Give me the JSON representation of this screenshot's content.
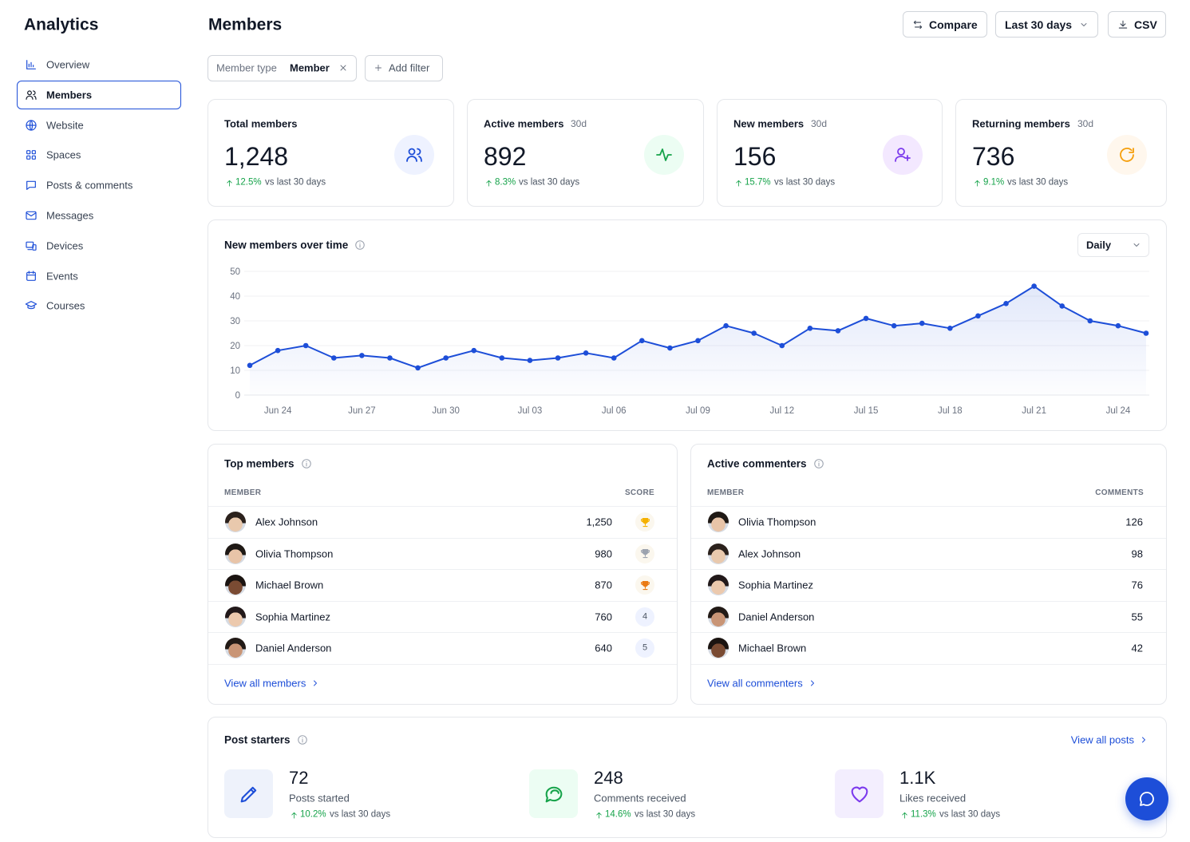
{
  "sidebar": {
    "title": "Analytics",
    "nav": [
      "Overview",
      "Members",
      "Website",
      "Spaces",
      "Posts & comments",
      "Messages",
      "Devices",
      "Events",
      "Courses"
    ],
    "active": 1
  },
  "header": {
    "title": "Members",
    "buttons": [
      "Compare",
      "Last 30 days",
      "CSV"
    ]
  },
  "filters": {
    "label": "Member type",
    "value": "Member",
    "add": "Add filter"
  },
  "stats": [
    {
      "label": "Total members",
      "value": "1,248",
      "change": "12.5%",
      "note": "vs last 30 days"
    },
    {
      "label": "Active members",
      "period": "30d",
      "value": "892",
      "change": "8.3%",
      "note": "vs last 30 days"
    },
    {
      "label": "New members",
      "period": "30d",
      "value": "156",
      "change": "15.7%",
      "note": "vs last 30 days"
    },
    {
      "label": "Returning members",
      "period": "30d",
      "value": "736",
      "change": "9.1%",
      "note": "vs last 30 days"
    }
  ],
  "chart_data": {
    "type": "line",
    "title": "New members over time",
    "control": "Daily",
    "categories": [
      null,
      "Jun 24",
      null,
      null,
      "Jun 27",
      null,
      null,
      "Jun 30",
      null,
      null,
      "Jul 03",
      null,
      null,
      "Jul 06",
      null,
      null,
      "Jul 09",
      null,
      null,
      "Jul 12",
      null,
      null,
      "Jul 15",
      null,
      null,
      "Jul 18",
      null,
      null,
      "Jul 21",
      null,
      null,
      "Jul 24",
      null
    ],
    "series": [
      {
        "name": "New members",
        "color": "#1d4ed8",
        "values": [
          12,
          18,
          20,
          15,
          16,
          15,
          11,
          15,
          18,
          15,
          14,
          15,
          17,
          15,
          22,
          19,
          22,
          28,
          25,
          20,
          27,
          26,
          31,
          28,
          29,
          27,
          32,
          37,
          44,
          36,
          30,
          28,
          25
        ]
      }
    ],
    "ylim": [
      0,
      50
    ],
    "yticks": [
      0,
      10,
      20,
      30,
      40,
      50
    ],
    "grid": true
  },
  "top_members": {
    "title": "Top members",
    "columns": [
      "MEMBER",
      "SCORE"
    ],
    "rows": [
      {
        "name": "Alex Johnson",
        "score": "1,250"
      },
      {
        "name": "Olivia Thompson",
        "score": "980"
      },
      {
        "name": "Michael Brown",
        "score": "870"
      },
      {
        "name": "Sophia Martinez",
        "score": "760",
        "rank": "4"
      },
      {
        "name": "Daniel Anderson",
        "score": "640",
        "rank": "5"
      }
    ],
    "link": "View all members"
  },
  "active_commenters": {
    "title": "Active commenters",
    "columns": [
      "MEMBER",
      "COMMENTS"
    ],
    "rows": [
      {
        "name": "Olivia Thompson",
        "score": "126"
      },
      {
        "name": "Alex Johnson",
        "score": "98"
      },
      {
        "name": "Sophia Martinez",
        "score": "76"
      },
      {
        "name": "Daniel Anderson",
        "score": "55"
      },
      {
        "name": "Michael Brown",
        "score": "42"
      }
    ],
    "link": "View all commenters"
  },
  "post_starters": {
    "title": "Post starters",
    "link": "View all posts",
    "items": [
      {
        "value": "72",
        "label": "Posts started",
        "change": "10.2%",
        "note": "vs last 30 days"
      },
      {
        "value": "248",
        "label": "Comments received",
        "change": "14.6%",
        "note": "vs last 30 days"
      },
      {
        "value": "1.1K",
        "label": "Likes received",
        "change": "11.3%",
        "note": "vs last 30 days"
      }
    ]
  }
}
